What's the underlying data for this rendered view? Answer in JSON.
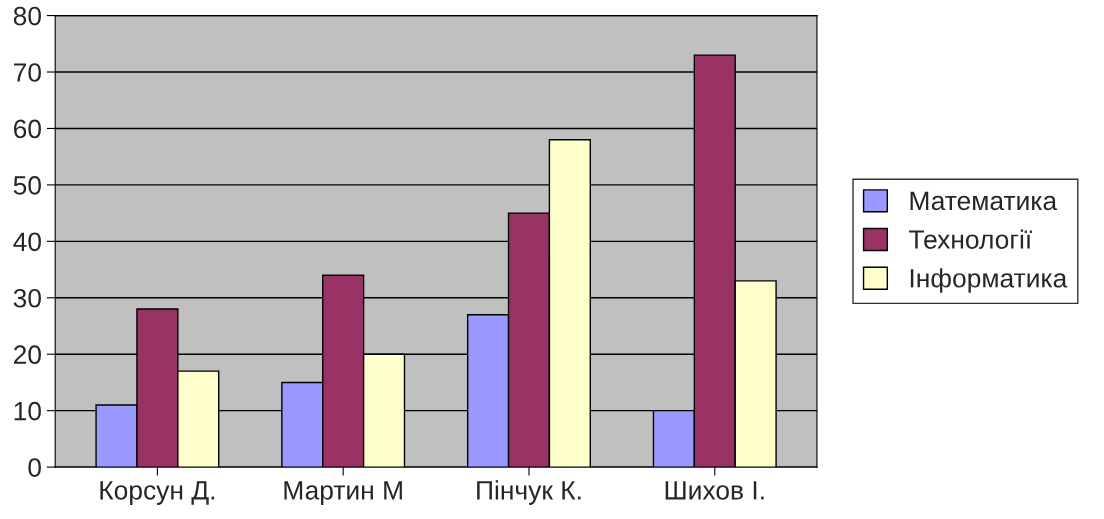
{
  "chart_data": {
    "type": "bar",
    "categories": [
      "Корсун Д.",
      "Мартин М",
      "Пінчук К.",
      "Шихов І."
    ],
    "series": [
      {
        "name": "Математика",
        "color": "#9999ff",
        "values": [
          11,
          15,
          27,
          10
        ]
      },
      {
        "name": "Технології",
        "color": "#993366",
        "values": [
          28,
          34,
          45,
          73
        ]
      },
      {
        "name": "Інформатика",
        "color": "#ffffcc",
        "values": [
          17,
          20,
          58,
          33
        ]
      }
    ],
    "ylim": [
      0,
      80
    ],
    "yticks": [
      0,
      10,
      20,
      30,
      40,
      50,
      60,
      70,
      80
    ],
    "grid": "y",
    "legend": "right"
  }
}
